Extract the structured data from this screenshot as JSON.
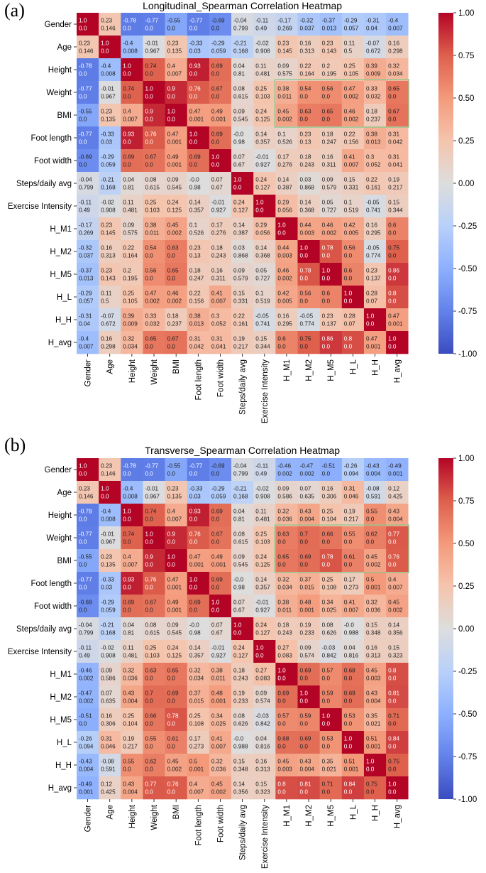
{
  "panels": [
    {
      "label": "(a)"
    },
    {
      "label": "(b)"
    }
  ],
  "chart_data": [
    {
      "type": "heatmap",
      "title": "Longitudinal_Spearman Correlation Heatmap",
      "variables": [
        "Gender",
        "Age",
        "Height",
        "Weight",
        "BMI",
        "Foot length",
        "Foot width",
        "Steps/daily avg",
        "Exercise Intensity",
        "H_M1",
        "H_M2",
        "H_M5",
        "H_L",
        "H_H",
        "H_avg"
      ],
      "colorbar": {
        "min": -1.0,
        "max": 1.0,
        "ticks": [
          "1.00",
          "0.75",
          "0.50",
          "0.25",
          "0.00",
          "-0.25",
          "-0.50",
          "-0.75",
          "-1.00"
        ],
        "colormap": "coolwarm"
      },
      "highlight": {
        "rows": [
          "Weight",
          "BMI"
        ],
        "cols": [
          "H_M1",
          "H_avg"
        ]
      },
      "rho": [
        [
          1.0,
          0.23,
          -0.78,
          -0.77,
          -0.55,
          -0.77,
          -0.69,
          -0.04,
          -0.11,
          -0.17,
          -0.32,
          -0.37,
          -0.29,
          -0.31,
          -0.4
        ],
        [
          0.23,
          1.0,
          -0.4,
          -0.01,
          0.23,
          -0.33,
          -0.29,
          -0.21,
          -0.02,
          0.23,
          0.16,
          0.23,
          0.11,
          -0.07,
          0.16
        ],
        [
          -0.78,
          -0.4,
          1.0,
          0.74,
          0.4,
          0.93,
          0.69,
          0.04,
          0.11,
          0.09,
          0.22,
          0.2,
          0.25,
          0.39,
          0.32
        ],
        [
          -0.77,
          -0.01,
          0.74,
          1.0,
          0.9,
          0.76,
          0.67,
          0.08,
          0.25,
          0.38,
          0.54,
          0.56,
          0.47,
          0.33,
          0.65
        ],
        [
          -0.55,
          0.23,
          0.4,
          0.9,
          1.0,
          0.47,
          0.49,
          0.09,
          0.24,
          0.45,
          0.63,
          0.65,
          0.46,
          0.18,
          0.67
        ],
        [
          -0.77,
          -0.33,
          0.93,
          0.76,
          0.47,
          1.0,
          0.69,
          -0.0,
          0.14,
          0.1,
          0.23,
          0.18,
          0.22,
          0.38,
          0.31
        ],
        [
          -0.69,
          -0.29,
          0.69,
          0.67,
          0.49,
          0.69,
          1.0,
          0.07,
          -0.01,
          0.17,
          0.18,
          0.16,
          0.41,
          0.3,
          0.31
        ],
        [
          -0.04,
          -0.21,
          0.04,
          0.08,
          0.09,
          -0.0,
          0.07,
          1.0,
          0.24,
          0.14,
          0.03,
          0.09,
          0.15,
          0.22,
          0.19
        ],
        [
          -0.11,
          -0.02,
          0.11,
          0.25,
          0.24,
          0.14,
          -0.01,
          0.24,
          1.0,
          0.29,
          0.14,
          0.05,
          0.1,
          -0.05,
          0.15
        ],
        [
          -0.17,
          0.23,
          0.09,
          0.38,
          0.45,
          0.1,
          0.17,
          0.14,
          0.29,
          1.0,
          0.44,
          0.46,
          0.42,
          0.16,
          0.6
        ],
        [
          -0.32,
          0.16,
          0.22,
          0.54,
          0.63,
          0.23,
          0.18,
          0.03,
          0.14,
          0.44,
          1.0,
          0.78,
          0.56,
          -0.05,
          0.75
        ],
        [
          -0.37,
          0.23,
          0.2,
          0.56,
          0.65,
          0.18,
          0.16,
          0.09,
          0.05,
          0.46,
          0.78,
          1.0,
          0.6,
          0.23,
          0.86
        ],
        [
          -0.29,
          0.11,
          0.25,
          0.47,
          0.46,
          0.22,
          0.41,
          0.15,
          0.1,
          0.42,
          0.56,
          0.6,
          1.0,
          0.28,
          0.8
        ],
        [
          -0.31,
          -0.07,
          0.39,
          0.33,
          0.18,
          0.38,
          0.3,
          0.22,
          -0.05,
          0.16,
          -0.05,
          0.23,
          0.28,
          1.0,
          0.47
        ],
        [
          -0.4,
          0.16,
          0.32,
          0.65,
          0.67,
          0.31,
          0.31,
          0.19,
          0.15,
          0.6,
          0.75,
          0.86,
          0.8,
          0.47,
          1.0
        ]
      ],
      "p": [
        [
          "0.0",
          "0.146",
          "0.0",
          "0.0",
          "0.0",
          "0.0",
          "0.0",
          "0.799",
          "0.49",
          "0.269",
          "0.037",
          "0.013",
          "0.057",
          "0.04",
          "0.007"
        ],
        [
          "0.146",
          "0.0",
          "0.008",
          "0.967",
          "0.135",
          "0.03",
          "0.059",
          "0.168",
          "0.908",
          "0.145",
          "0.313",
          "0.143",
          "0.5",
          "0.672",
          "0.298"
        ],
        [
          "0.0",
          "0.008",
          "0.0",
          "0.0",
          "0.007",
          "0.0",
          "0.0",
          "0.81",
          "0.481",
          "0.575",
          "0.164",
          "0.195",
          "0.105",
          "0.009",
          "0.034"
        ],
        [
          "0.0",
          "0.967",
          "0.0",
          "0.0",
          "0.0",
          "0.0",
          "0.0",
          "0.615",
          "0.103",
          "0.011",
          "0.0",
          "0.0",
          "0.002",
          "0.032",
          "0.0"
        ],
        [
          "0.0",
          "0.135",
          "0.007",
          "0.0",
          "0.0",
          "0.001",
          "0.001",
          "0.545",
          "0.125",
          "0.002",
          "0.0",
          "0.0",
          "0.002",
          "0.237",
          "0.0"
        ],
        [
          "0.0",
          "0.03",
          "0.0",
          "0.0",
          "0.001",
          "0.0",
          "0.0",
          "0.98",
          "0.357",
          "0.526",
          "0.13",
          "0.247",
          "0.156",
          "0.013",
          "0.042"
        ],
        [
          "0.0",
          "0.059",
          "0.0",
          "0.0",
          "0.001",
          "0.0",
          "0.0",
          "0.67",
          "0.927",
          "0.276",
          "0.243",
          "0.311",
          "0.007",
          "0.052",
          "0.041"
        ],
        [
          "0.799",
          "0.168",
          "0.81",
          "0.615",
          "0.545",
          "0.98",
          "0.67",
          "0.0",
          "0.127",
          "0.387",
          "0.868",
          "0.579",
          "0.331",
          "0.161",
          "0.217"
        ],
        [
          "0.49",
          "0.908",
          "0.481",
          "0.103",
          "0.125",
          "0.357",
          "0.927",
          "0.127",
          "0.0",
          "0.056",
          "0.368",
          "0.727",
          "0.519",
          "0.741",
          "0.344"
        ],
        [
          "0.269",
          "0.145",
          "0.575",
          "0.011",
          "0.002",
          "0.526",
          "0.276",
          "0.387",
          "0.056",
          "0.0",
          "0.003",
          "0.002",
          "0.005",
          "0.295",
          "0.0"
        ],
        [
          "0.037",
          "0.313",
          "0.164",
          "0.0",
          "0.0",
          "0.13",
          "0.243",
          "0.868",
          "0.368",
          "0.003",
          "0.0",
          "0.0",
          "0.0",
          "0.774",
          "0.0"
        ],
        [
          "0.013",
          "0.143",
          "0.195",
          "0.0",
          "0.0",
          "0.247",
          "0.311",
          "0.579",
          "0.727",
          "0.002",
          "0.0",
          "0.0",
          "0.0",
          "0.137",
          "0.0"
        ],
        [
          "0.057",
          "0.5",
          "0.105",
          "0.002",
          "0.002",
          "0.156",
          "0.007",
          "0.331",
          "0.519",
          "0.005",
          "0.0",
          "0.0",
          "0.0",
          "0.07",
          "0.0"
        ],
        [
          "0.04",
          "0.672",
          "0.009",
          "0.032",
          "0.237",
          "0.013",
          "0.052",
          "0.161",
          "0.741",
          "0.295",
          "0.774",
          "0.137",
          "0.07",
          "0.0",
          "0.001"
        ],
        [
          "0.007",
          "0.298",
          "0.034",
          "0.0",
          "0.0",
          "0.042",
          "0.041",
          "0.217",
          "0.344",
          "0.0",
          "0.0",
          "0.0",
          "0.0",
          "0.001",
          "0.0"
        ]
      ]
    },
    {
      "type": "heatmap",
      "title": "Transverse_Spearman Correlation Heatmap",
      "variables": [
        "Gender",
        "Age",
        "Height",
        "Weight",
        "BMI",
        "Foot length",
        "Foot width",
        "Steps/daily avg",
        "Exercise Intensity",
        "H_M1",
        "H_M2",
        "H_M5",
        "H_L",
        "H_H",
        "H_avg"
      ],
      "colorbar": {
        "min": -1.0,
        "max": 1.0,
        "ticks": [
          "1.00",
          "0.75",
          "0.50",
          "0.25",
          "0.00",
          "-0.25",
          "-0.50",
          "-0.75",
          "-1.00"
        ],
        "colormap": "coolwarm"
      },
      "highlight": {
        "rows": [
          "Weight",
          "BMI"
        ],
        "cols": [
          "H_M1",
          "H_avg"
        ]
      },
      "rho": [
        [
          1.0,
          0.23,
          -0.78,
          -0.77,
          -0.55,
          -0.77,
          -0.69,
          -0.04,
          -0.11,
          -0.46,
          -0.47,
          -0.51,
          -0.26,
          -0.43,
          -0.49
        ],
        [
          0.23,
          1.0,
          -0.4,
          -0.01,
          0.23,
          -0.33,
          -0.29,
          -0.21,
          -0.02,
          0.09,
          0.07,
          0.16,
          0.31,
          -0.08,
          0.12
        ],
        [
          -0.78,
          -0.4,
          1.0,
          0.74,
          0.4,
          0.93,
          0.69,
          0.04,
          0.11,
          0.32,
          0.43,
          0.25,
          0.19,
          0.55,
          0.43
        ],
        [
          -0.77,
          -0.01,
          0.74,
          1.0,
          0.9,
          0.76,
          0.67,
          0.08,
          0.25,
          0.63,
          0.7,
          0.66,
          0.55,
          0.62,
          0.77
        ],
        [
          -0.55,
          0.23,
          0.4,
          0.9,
          1.0,
          0.47,
          0.49,
          0.09,
          0.24,
          0.65,
          0.69,
          0.78,
          0.61,
          0.45,
          0.76
        ],
        [
          -0.77,
          -0.33,
          0.93,
          0.76,
          0.47,
          1.0,
          0.69,
          -0.0,
          0.14,
          0.32,
          0.37,
          0.25,
          0.17,
          0.5,
          0.4
        ],
        [
          -0.69,
          -0.29,
          0.69,
          0.67,
          0.49,
          0.69,
          1.0,
          0.07,
          -0.01,
          0.38,
          0.48,
          0.34,
          0.41,
          0.32,
          0.45
        ],
        [
          -0.04,
          -0.21,
          0.04,
          0.08,
          0.09,
          -0.0,
          0.07,
          1.0,
          0.24,
          0.18,
          0.19,
          0.08,
          -0.0,
          0.15,
          0.14
        ],
        [
          -0.11,
          -0.02,
          0.11,
          0.25,
          0.24,
          0.14,
          -0.01,
          0.24,
          1.0,
          0.27,
          0.09,
          -0.03,
          0.04,
          0.16,
          0.15
        ],
        [
          -0.46,
          0.09,
          0.32,
          0.63,
          0.65,
          0.32,
          0.38,
          0.18,
          0.27,
          1.0,
          0.69,
          0.57,
          0.68,
          0.45,
          0.8
        ],
        [
          -0.47,
          0.07,
          0.43,
          0.7,
          0.69,
          0.37,
          0.48,
          0.19,
          0.09,
          0.69,
          1.0,
          0.59,
          0.69,
          0.43,
          0.81
        ],
        [
          -0.51,
          0.16,
          0.25,
          0.66,
          0.78,
          0.25,
          0.34,
          0.08,
          -0.03,
          0.57,
          0.59,
          1.0,
          0.53,
          0.35,
          0.71
        ],
        [
          -0.26,
          0.31,
          0.19,
          0.55,
          0.61,
          0.17,
          0.41,
          -0.0,
          0.04,
          0.68,
          0.69,
          0.53,
          1.0,
          0.51,
          0.84
        ],
        [
          -0.43,
          -0.08,
          0.55,
          0.62,
          0.45,
          0.5,
          0.32,
          0.15,
          0.16,
          0.45,
          0.43,
          0.35,
          0.51,
          1.0,
          0.75
        ],
        [
          -0.49,
          0.12,
          0.43,
          0.77,
          0.76,
          0.4,
          0.45,
          0.14,
          0.15,
          0.8,
          0.81,
          0.71,
          0.84,
          0.75,
          1.0
        ]
      ],
      "p": [
        [
          "0.0",
          "0.146",
          "0.0",
          "0.0",
          "0.0",
          "0.0",
          "0.0",
          "0.799",
          "0.49",
          "0.002",
          "0.002",
          "0.0",
          "0.094",
          "0.004",
          "0.001"
        ],
        [
          "0.146",
          "0.0",
          "0.008",
          "0.967",
          "0.135",
          "0.03",
          "0.059",
          "0.168",
          "0.908",
          "0.586",
          "0.635",
          "0.306",
          "0.046",
          "0.591",
          "0.425"
        ],
        [
          "0.0",
          "0.008",
          "0.0",
          "0.0",
          "0.007",
          "0.0",
          "0.0",
          "0.81",
          "0.481",
          "0.036",
          "0.004",
          "0.104",
          "0.217",
          "0.0",
          "0.004"
        ],
        [
          "0.0",
          "0.967",
          "0.0",
          "0.0",
          "0.0",
          "0.0",
          "0.0",
          "0.615",
          "0.103",
          "0.0",
          "0.0",
          "0.0",
          "0.0",
          "0.0",
          "0.0"
        ],
        [
          "0.0",
          "0.135",
          "0.007",
          "0.0",
          "0.0",
          "0.001",
          "0.001",
          "0.545",
          "0.125",
          "0.0",
          "0.0",
          "0.0",
          "0.0",
          "0.002",
          "0.0"
        ],
        [
          "0.0",
          "0.03",
          "0.0",
          "0.0",
          "0.001",
          "0.0",
          "0.0",
          "0.98",
          "0.357",
          "0.034",
          "0.015",
          "0.108",
          "0.273",
          "0.001",
          "0.007"
        ],
        [
          "0.0",
          "0.059",
          "0.0",
          "0.0",
          "0.001",
          "0.0",
          "0.0",
          "0.67",
          "0.927",
          "0.011",
          "0.001",
          "0.025",
          "0.007",
          "0.036",
          "0.002"
        ],
        [
          "0.799",
          "0.168",
          "0.81",
          "0.615",
          "0.545",
          "0.98",
          "0.67",
          "0.0",
          "0.127",
          "0.243",
          "0.233",
          "0.626",
          "0.988",
          "0.348",
          "0.356"
        ],
        [
          "0.49",
          "0.908",
          "0.481",
          "0.103",
          "0.125",
          "0.357",
          "0.927",
          "0.127",
          "0.0",
          "0.083",
          "0.574",
          "0.842",
          "0.816",
          "0.313",
          "0.323"
        ],
        [
          "0.002",
          "0.586",
          "0.036",
          "0.0",
          "0.0",
          "0.034",
          "0.011",
          "0.243",
          "0.083",
          "0.0",
          "0.0",
          "0.0",
          "0.0",
          "0.003",
          "0.0"
        ],
        [
          "0.002",
          "0.635",
          "0.004",
          "0.0",
          "0.0",
          "0.015",
          "0.001",
          "0.233",
          "0.574",
          "0.0",
          "0.0",
          "0.0",
          "0.0",
          "0.004",
          "0.0"
        ],
        [
          "0.0",
          "0.306",
          "0.104",
          "0.0",
          "0.0",
          "0.108",
          "0.025",
          "0.626",
          "0.842",
          "0.0",
          "0.0",
          "0.0",
          "0.0",
          "0.021",
          "0.0"
        ],
        [
          "0.094",
          "0.046",
          "0.217",
          "0.0",
          "0.0",
          "0.273",
          "0.007",
          "0.988",
          "0.816",
          "0.0",
          "0.0",
          "0.0",
          "0.0",
          "0.001",
          "0.0"
        ],
        [
          "0.004",
          "0.591",
          "0.0",
          "0.0",
          "0.002",
          "0.001",
          "0.036",
          "0.348",
          "0.313",
          "0.003",
          "0.004",
          "0.021",
          "0.001",
          "0.0",
          "0.0"
        ],
        [
          "0.001",
          "0.425",
          "0.004",
          "0.0",
          "0.0",
          "0.007",
          "0.002",
          "0.356",
          "0.323",
          "0.0",
          "0.0",
          "0.0",
          "0.0",
          "0.0",
          "0.0"
        ]
      ]
    }
  ]
}
